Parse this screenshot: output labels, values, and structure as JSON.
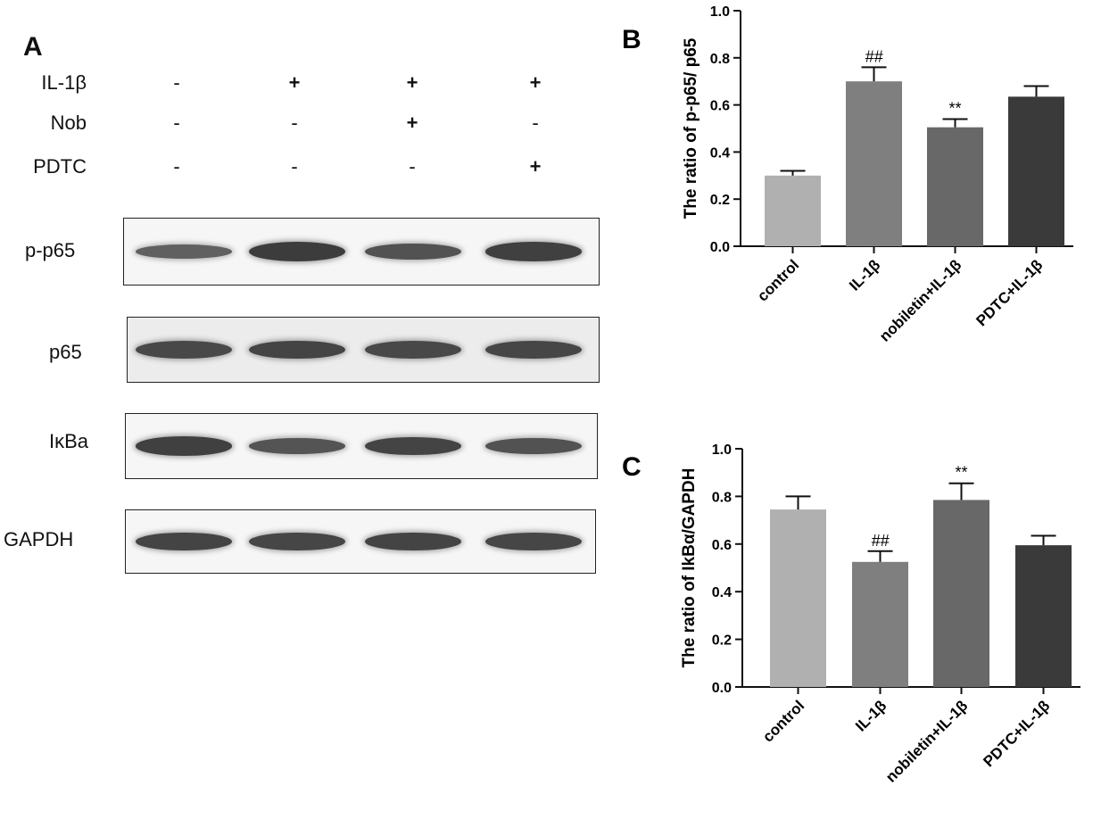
{
  "panel_a": {
    "letter": "A",
    "treatment_rows": [
      {
        "label": "IL-1β",
        "signs": [
          "-",
          "+",
          "+",
          "+"
        ]
      },
      {
        "label": "Nob",
        "signs": [
          "-",
          "-",
          "+",
          "-"
        ]
      },
      {
        "label": "PDTC",
        "signs": [
          "-",
          "-",
          "-",
          "+"
        ]
      }
    ],
    "blots": [
      {
        "label": "p-p65",
        "band_intensity": [
          0.55,
          1.0,
          0.72,
          0.95
        ]
      },
      {
        "label": "p65",
        "band_intensity": [
          0.85,
          0.9,
          0.85,
          0.88
        ]
      },
      {
        "label": "IκBa",
        "band_intensity": [
          0.95,
          0.7,
          0.9,
          0.72
        ]
      },
      {
        "label": "GAPDH",
        "band_intensity": [
          0.9,
          0.88,
          0.9,
          0.88
        ]
      }
    ]
  },
  "chart_data": [
    {
      "panel": "B",
      "type": "bar",
      "title": "",
      "ylabel": "The ratio of p-p65/ p65",
      "xlabel": "",
      "categories": [
        "control",
        "IL-1β",
        "nobiletin+IL-1β",
        "PDTC+IL-1β"
      ],
      "values": [
        0.3,
        0.7,
        0.505,
        0.635
      ],
      "errors": [
        0.02,
        0.06,
        0.035,
        0.045
      ],
      "annotations": [
        "",
        "##",
        "**",
        ""
      ],
      "colors": [
        "#b0b0b0",
        "#7f7f7f",
        "#686868",
        "#3a3a3a"
      ],
      "ylim": [
        0,
        1.0
      ],
      "yticks": [
        "0.0",
        "0.2",
        "0.4",
        "0.6",
        "0.8",
        "1.0"
      ],
      "grid": false
    },
    {
      "panel": "C",
      "type": "bar",
      "title": "",
      "ylabel": "The ratio of IkBα/GAPDH",
      "xlabel": "",
      "categories": [
        "control",
        "IL-1β",
        "nobiletin+IL-1β",
        "PDTC+IL-1β"
      ],
      "values": [
        0.745,
        0.525,
        0.785,
        0.595
      ],
      "errors": [
        0.055,
        0.045,
        0.07,
        0.04
      ],
      "annotations": [
        "",
        "##",
        "**",
        ""
      ],
      "colors": [
        "#b0b0b0",
        "#7f7f7f",
        "#686868",
        "#3a3a3a"
      ],
      "ylim": [
        0,
        1.0
      ],
      "yticks": [
        "0.0",
        "0.2",
        "0.4",
        "0.6",
        "0.8",
        "1.0"
      ],
      "grid": false
    }
  ]
}
